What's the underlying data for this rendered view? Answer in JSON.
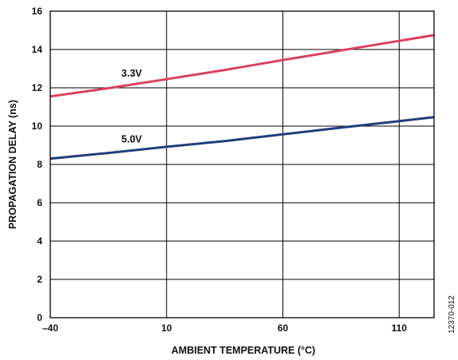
{
  "chart_data": {
    "type": "line",
    "title": "",
    "xlabel": "AMBIENT TEMPERATURE (°C)",
    "ylabel": "PROPAGATION DELAY (ns)",
    "xlim": [
      -40,
      125
    ],
    "ylim": [
      0,
      16
    ],
    "x_ticks": [
      -40,
      10,
      60,
      110
    ],
    "x_tick_labels": [
      "–40",
      "10",
      "60",
      "110"
    ],
    "y_ticks": [
      0,
      2,
      4,
      6,
      8,
      10,
      12,
      14,
      16
    ],
    "y_tick_labels": [
      "0",
      "2",
      "4",
      "6",
      "8",
      "10",
      "12",
      "14",
      "16"
    ],
    "grid": true,
    "series": [
      {
        "name": "3.3V",
        "color": "#d9405e",
        "x": [
          -40,
          -15,
          10,
          35,
          60,
          85,
          110,
          125
        ],
        "y": [
          11.55,
          11.98,
          12.45,
          12.93,
          13.45,
          13.95,
          14.45,
          14.75
        ]
      },
      {
        "name": "5.0V",
        "color": "#1e3f7a",
        "x": [
          -40,
          -15,
          10,
          35,
          60,
          85,
          110,
          125
        ],
        "y": [
          8.3,
          8.6,
          8.92,
          9.22,
          9.57,
          9.92,
          10.26,
          10.47
        ]
      }
    ]
  },
  "figure_id": "12370-012"
}
